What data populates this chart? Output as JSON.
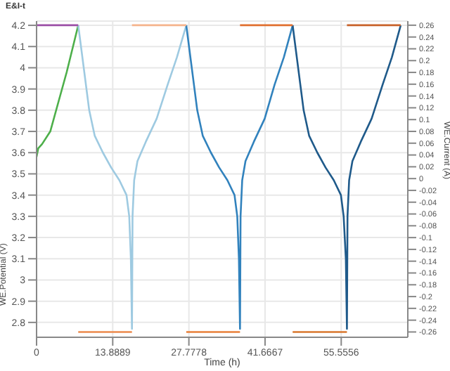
{
  "chart_data": {
    "type": "line",
    "title": "E&I-t",
    "xlabel": "Time (h)",
    "ylabel": "WE.Potential (V)",
    "y2label": "WE.Current (A)",
    "xlim": [
      0,
      67.7
    ],
    "xticks": [
      0,
      13.8889,
      27.7778,
      41.6667,
      55.5556
    ],
    "ylim": [
      2.73,
      4.22
    ],
    "yticks": [
      2.8,
      2.9,
      3,
      3.1,
      3.2,
      3.3,
      3.4,
      3.5,
      3.6,
      3.7,
      3.8,
      3.9,
      4,
      4.1,
      4.2
    ],
    "y2lim": [
      -0.269,
      0.267
    ],
    "y2ticks": [
      -0.26,
      -0.24,
      -0.22,
      -0.2,
      -0.18,
      -0.16,
      -0.14,
      -0.12,
      -0.1,
      -0.08,
      -0.06,
      -0.04,
      -0.02,
      0,
      0.02,
      0.04,
      0.06,
      0.08,
      0.1,
      0.12,
      0.14,
      0.16,
      0.18,
      0.2,
      0.22,
      0.24,
      0.26
    ],
    "grid": true,
    "legend": false,
    "series": [
      {
        "color": "#4daf4a",
        "x": [
          0,
          0.3,
          1,
          2.5,
          4,
          5.5,
          7.6
        ],
        "values": [
          3.58,
          3.62,
          3.64,
          3.7,
          3.84,
          3.98,
          4.2
        ]
      },
      {
        "color": "#9ecae1",
        "x": [
          7.6,
          8.6,
          9.6,
          10.6,
          12.1,
          13.6,
          15.1,
          16.4,
          16.9,
          17.2,
          17.4,
          17.5,
          17.8,
          18.4,
          19.9,
          21.9,
          23.9,
          25.6,
          27.3
        ],
        "values": [
          4.2,
          4.0,
          3.8,
          3.68,
          3.6,
          3.53,
          3.47,
          3.4,
          3.3,
          3.1,
          2.77,
          3.3,
          3.47,
          3.56,
          3.65,
          3.76,
          3.92,
          4.05,
          4.2
        ]
      },
      {
        "color": "#3182bd",
        "x": [
          27.3,
          28.3,
          29.3,
          30.3,
          31.8,
          33.3,
          34.8,
          36.1,
          36.6,
          36.9,
          37.1,
          37.2,
          37.5,
          38.1,
          39.6,
          41.6,
          43.4,
          45.1,
          46.7
        ],
        "values": [
          4.2,
          4.0,
          3.8,
          3.68,
          3.6,
          3.53,
          3.47,
          3.4,
          3.3,
          3.1,
          2.77,
          3.3,
          3.47,
          3.56,
          3.65,
          3.76,
          3.92,
          4.05,
          4.2
        ]
      },
      {
        "color": "#1f5a8a",
        "x": [
          46.7,
          47.7,
          48.7,
          49.7,
          51.2,
          52.7,
          54.2,
          55.5,
          56.0,
          56.4,
          56.6,
          56.7,
          57.0,
          57.6,
          59.1,
          61.1,
          63.1,
          64.8,
          66.4
        ],
        "values": [
          4.2,
          4.0,
          3.8,
          3.68,
          3.6,
          3.53,
          3.47,
          3.4,
          3.3,
          3.1,
          2.77,
          3.3,
          3.47,
          3.56,
          3.65,
          3.76,
          3.92,
          4.05,
          4.2
        ]
      },
      {
        "axis": "y2",
        "color": "#9b4fa6",
        "x": [
          0,
          7.6
        ],
        "values": [
          0.26,
          0.26
        ]
      },
      {
        "axis": "y2",
        "color": "#ec8a4c",
        "x": [
          7.6,
          17.4
        ],
        "values": [
          -0.26,
          -0.26
        ]
      },
      {
        "axis": "y2",
        "color": "#f5b48c",
        "x": [
          17.4,
          27.3
        ],
        "values": [
          0.26,
          0.26
        ]
      },
      {
        "axis": "y2",
        "color": "#e8803a",
        "x": [
          27.3,
          37.1
        ],
        "values": [
          -0.26,
          -0.26
        ]
      },
      {
        "axis": "y2",
        "color": "#e07030",
        "x": [
          37.1,
          46.7
        ],
        "values": [
          0.26,
          0.26
        ]
      },
      {
        "axis": "y2",
        "color": "#d9772e",
        "x": [
          46.7,
          56.6
        ],
        "values": [
          -0.26,
          -0.26
        ]
      },
      {
        "axis": "y2",
        "color": "#c8622a",
        "x": [
          56.6,
          66.4
        ],
        "values": [
          0.26,
          0.26
        ]
      }
    ]
  }
}
